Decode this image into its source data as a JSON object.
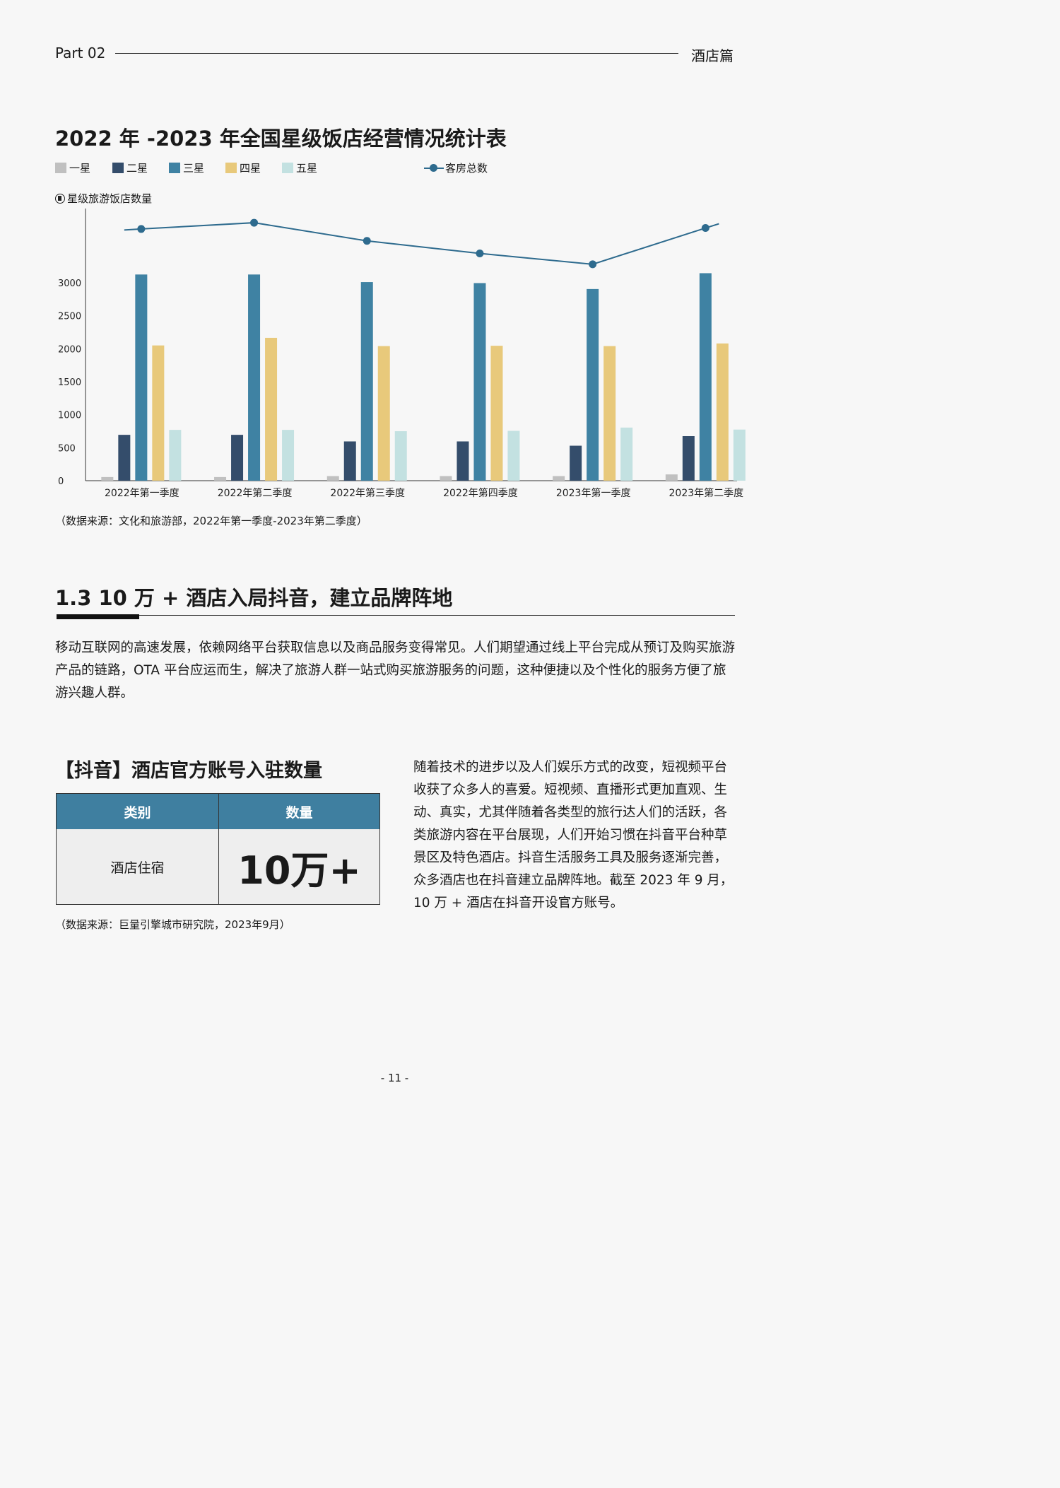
{
  "header": {
    "part": "Part 02",
    "category": "酒店篇"
  },
  "chart_title": "2022 年 -2023 年全国星级饭店经营情况统计表",
  "legend": {
    "items": [
      {
        "label": "一星",
        "color": "#c0c0c0"
      },
      {
        "label": "二星",
        "color": "#344d6b"
      },
      {
        "label": "三星",
        "color": "#3f82a3"
      },
      {
        "label": "四星",
        "color": "#e8c97b"
      },
      {
        "label": "五星",
        "color": "#c3e1e1"
      }
    ],
    "line_label": "客房总数"
  },
  "chart_ylabel": "星级旅游饭店数量",
  "chart_data": {
    "type": "bar",
    "title": "2022 年 -2023 年全国星级饭店经营情况统计表",
    "ylabel": "星级旅游饭店数量",
    "xlabel": "",
    "categories": [
      "2022年第一季度",
      "2022年第二季度",
      "2022年第三季度",
      "2022年第四季度",
      "2023年第一季度",
      "2023年第二季度"
    ],
    "ylim": [
      0,
      3500
    ],
    "yticks": [
      0,
      500,
      1000,
      1500,
      2000,
      2500,
      3000
    ],
    "series": [
      {
        "name": "一星",
        "color": "#c0c0c0",
        "values": [
          55,
          55,
          70,
          70,
          70,
          95
        ]
      },
      {
        "name": "二星",
        "color": "#344d6b",
        "values": [
          695,
          695,
          595,
          595,
          530,
          675
        ]
      },
      {
        "name": "三星",
        "color": "#3f82a3",
        "values": [
          3125,
          3125,
          3010,
          2995,
          2905,
          3145
        ]
      },
      {
        "name": "四星",
        "color": "#e8c97b",
        "values": [
          2050,
          2165,
          2040,
          2045,
          2040,
          2080
        ]
      },
      {
        "name": "五星",
        "color": "#c3e1e1",
        "values": [
          770,
          770,
          750,
          755,
          805,
          775
        ]
      }
    ],
    "line_series": {
      "name": "客房总数",
      "color": "#2e6b8e",
      "values": [
        3815,
        3910,
        3635,
        3445,
        3280,
        3830
      ],
      "note": "no scale printed for 客房总数; values in bar-axis units"
    },
    "grid": false,
    "legend_position": "top-left"
  },
  "chart_source": "（数据来源：文化和旅游部，2022年第一季度-2023年第二季度）",
  "section": {
    "title": "1.3  10 万 + 酒店入局抖音，建立品牌阵地",
    "intro": "移动互联网的高速发展，依赖网络平台获取信息以及商品服务变得常见。人们期望通过线上平台完成从预订及购买旅游产品的链路，OTA 平台应运而生，解决了旅游人群一站式购买旅游服务的问题，这种便捷以及个性化的服务方便了旅游兴趣人群。"
  },
  "table": {
    "title": "【抖音】酒店官方账号入驻数量",
    "headers": [
      "类别",
      "数量"
    ],
    "rows": [
      [
        "酒店住宿",
        "10万+"
      ]
    ],
    "header_color": "#3f7fa0",
    "source": "（数据来源：巨量引擎城市研究院，2023年9月）"
  },
  "side_text": "随着技术的进步以及人们娱乐方式的改变，短视频平台收获了众多人的喜爱。短视频、直播形式更加直观、生动、真实，尤其伴随着各类型的旅行达人们的活跃，各类旅游内容在平台展现，人们开始习惯在抖音平台种草景区及特色酒店。抖音生活服务工具及服务逐渐完善，众多酒店也在抖音建立品牌阵地。截至 2023 年 9 月，10 万 + 酒店在抖音开设官方账号。",
  "page_number": "- 11 -"
}
